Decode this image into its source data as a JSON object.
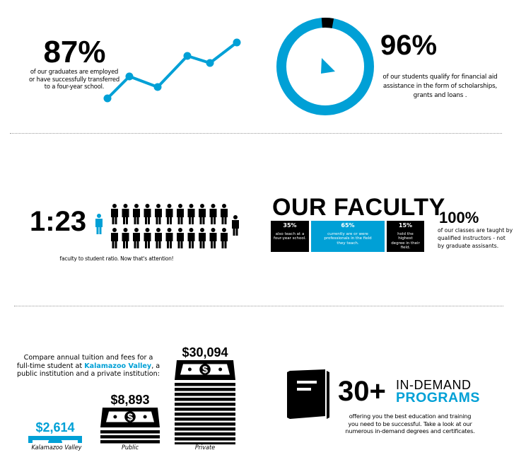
{
  "employment": {
    "value": "87%",
    "caption": [
      "of our graduates are employed",
      "or have successfully transferred",
      "to a four-year school."
    ],
    "trend": [
      1,
      3,
      2,
      5,
      4,
      6
    ]
  },
  "financial_aid": {
    "value": "96%",
    "fraction": 0.96,
    "caption": [
      "of our students qualify for financial aid",
      "assistance in the form of scholarships,",
      "grants and loans ."
    ]
  },
  "ratio": {
    "value": "1:23",
    "caption": "faculty to student ratio. Now that's attention!"
  },
  "faculty": {
    "title": "OUR FACULTY",
    "boxes": [
      {
        "pct": "35%",
        "text": "also teach at a four-year school."
      },
      {
        "pct": "65%",
        "text": "currently are or were professionals in the field they teach."
      },
      {
        "pct": "15%",
        "text": "hold the highest degree in their field."
      }
    ],
    "stat": "100%",
    "stat_caption": [
      "of our classes are taught by",
      "qualified instructors - not",
      "by graduate assisants."
    ]
  },
  "tuition": {
    "intro_1": "Compare annual tuition and fees for a",
    "intro_2a": "full-time student at ",
    "intro_highlight": "Kalamazoo Valley",
    "intro_2b": ", a",
    "intro_3": "public institution and a private institution:",
    "items": [
      {
        "amount": "$2,614",
        "label": "Kalamazoo Valley"
      },
      {
        "amount": "$8,893",
        "label": "Public"
      },
      {
        "amount": "$30,094",
        "label": "Private"
      }
    ]
  },
  "programs": {
    "count": "30+",
    "line1": "IN-DEMAND",
    "line2": "PROGRAMS",
    "caption": [
      "offering you the best education and training",
      "you need to be successful. Take a look at our",
      "numerous in-demand degrees and certificates."
    ]
  },
  "colors": {
    "accent": "#00a0d6",
    "dark": "#000000"
  }
}
